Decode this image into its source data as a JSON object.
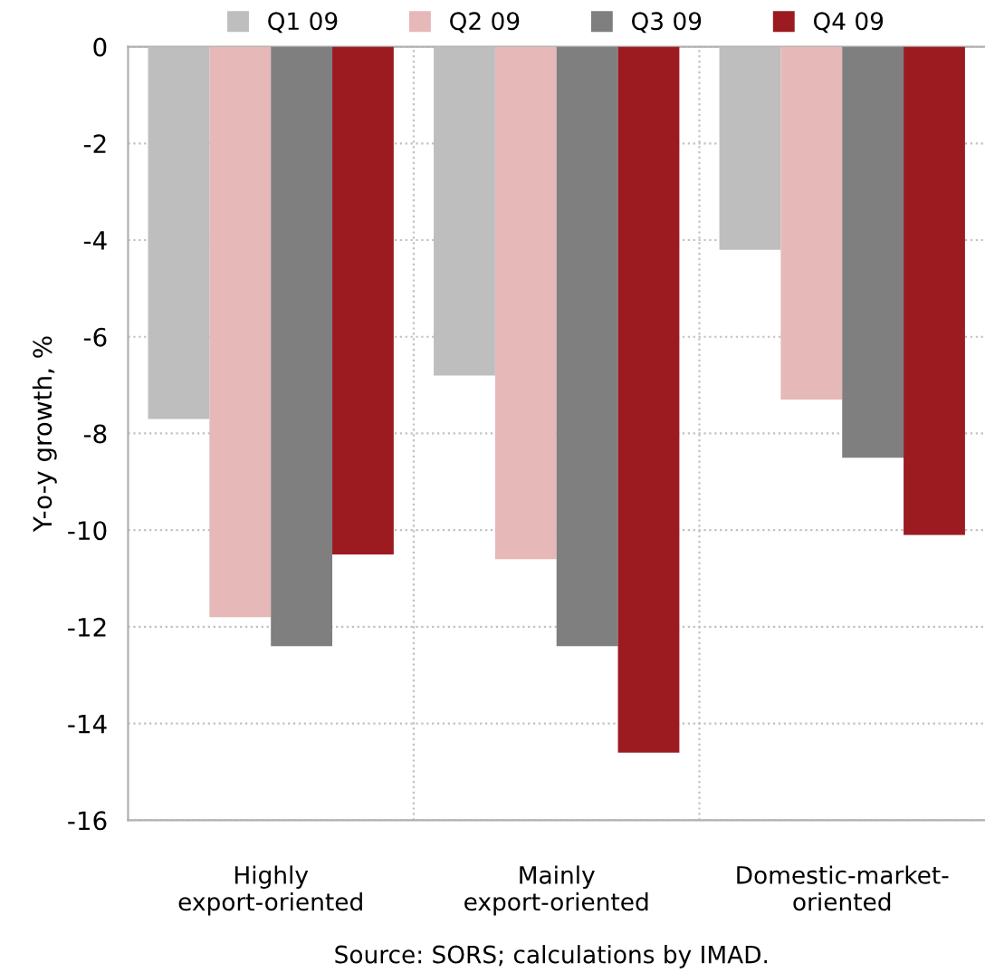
{
  "chart_data": {
    "type": "bar",
    "ylabel": "Y-o-y growth, %",
    "categories": [
      "Highly\nexport-oriented",
      "Mainly\nexport-oriented",
      "Domestic-market-\noriented"
    ],
    "series": [
      {
        "name": "Q1 09",
        "color": "#bebebe",
        "values": [
          -7.7,
          -6.8,
          -4.2
        ]
      },
      {
        "name": "Q2 09",
        "color": "#e6b8b7",
        "values": [
          -11.8,
          -10.6,
          -7.3
        ]
      },
      {
        "name": "Q3 09",
        "color": "#7f7f7f",
        "values": [
          -12.4,
          -12.4,
          -8.5
        ]
      },
      {
        "name": "Q4 09",
        "color": "#9b1b20",
        "values": [
          -10.5,
          -14.6,
          -10.1
        ]
      }
    ],
    "ylim": [
      -16,
      0
    ],
    "yticks": [
      -16,
      -14,
      -12,
      -10,
      -8,
      -6,
      -4,
      -2,
      0
    ],
    "grid": true,
    "legend": "top",
    "annotations": [
      "Source: SORS; calculations by IMAD."
    ]
  }
}
